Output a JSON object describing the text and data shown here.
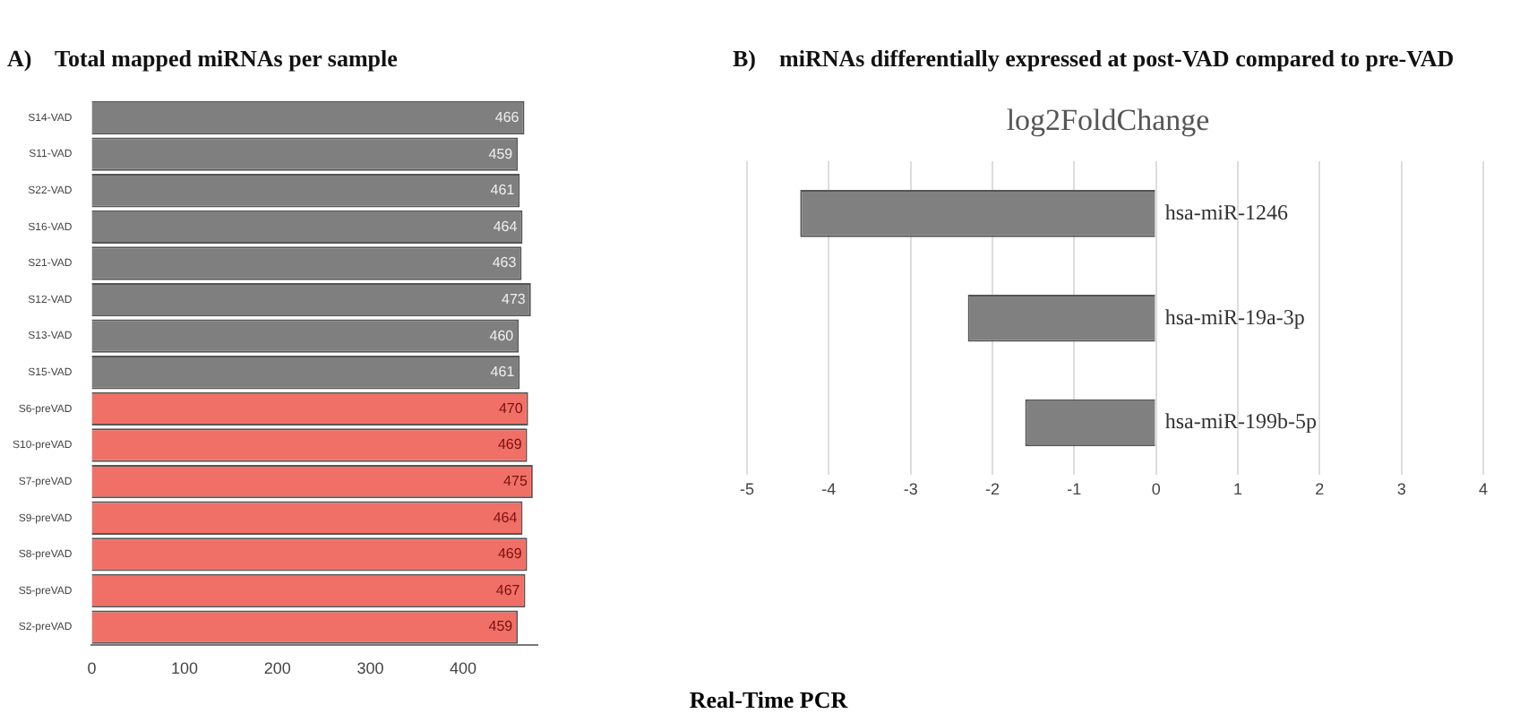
{
  "chart_data": [
    {
      "type": "bar",
      "orientation": "horizontal",
      "title": "A)    Total mapped miRNAs per sample",
      "categories": [
        "S14-VAD",
        "S11-VAD",
        "S22-VAD",
        "S16-VAD",
        "S21-VAD",
        "S12-VAD",
        "S13-VAD",
        "S15-VAD",
        "S6-preVAD",
        "S10-preVAD",
        "S7-preVAD",
        "S9-preVAD",
        "S8-preVAD",
        "S5-preVAD",
        "S2-preVAD"
      ],
      "values": [
        466,
        459,
        461,
        464,
        463,
        473,
        460,
        461,
        470,
        469,
        475,
        464,
        469,
        467,
        459
      ],
      "colors": [
        "#7f7f7f",
        "#7f7f7f",
        "#7f7f7f",
        "#7f7f7f",
        "#7f7f7f",
        "#7f7f7f",
        "#7f7f7f",
        "#7f7f7f",
        "#f07067",
        "#f07067",
        "#f07067",
        "#f07067",
        "#f07067",
        "#f07067",
        "#f07067"
      ],
      "xlim": [
        0,
        480
      ],
      "xticks": [
        0,
        100,
        200,
        300,
        400
      ],
      "grid": false,
      "data_labels": true,
      "annotations": [
        "Real-Time PCR"
      ]
    },
    {
      "type": "bar",
      "orientation": "horizontal",
      "title": "B)    miRNAs differentially expressed at post-VAD compared to pre-VAD",
      "subtitle": "log2FoldChange",
      "categories": [
        "hsa-miR-1246",
        "hsa-miR-19a-3p",
        "hsa-miR-199b-5p"
      ],
      "values": [
        -4.35,
        -2.3,
        -1.6
      ],
      "color": "#808080",
      "xlim": [
        -5,
        4
      ],
      "xticks": [
        -5,
        -4,
        -3,
        -2,
        -1,
        0,
        1,
        2,
        3,
        4
      ],
      "grid": "x"
    }
  ]
}
